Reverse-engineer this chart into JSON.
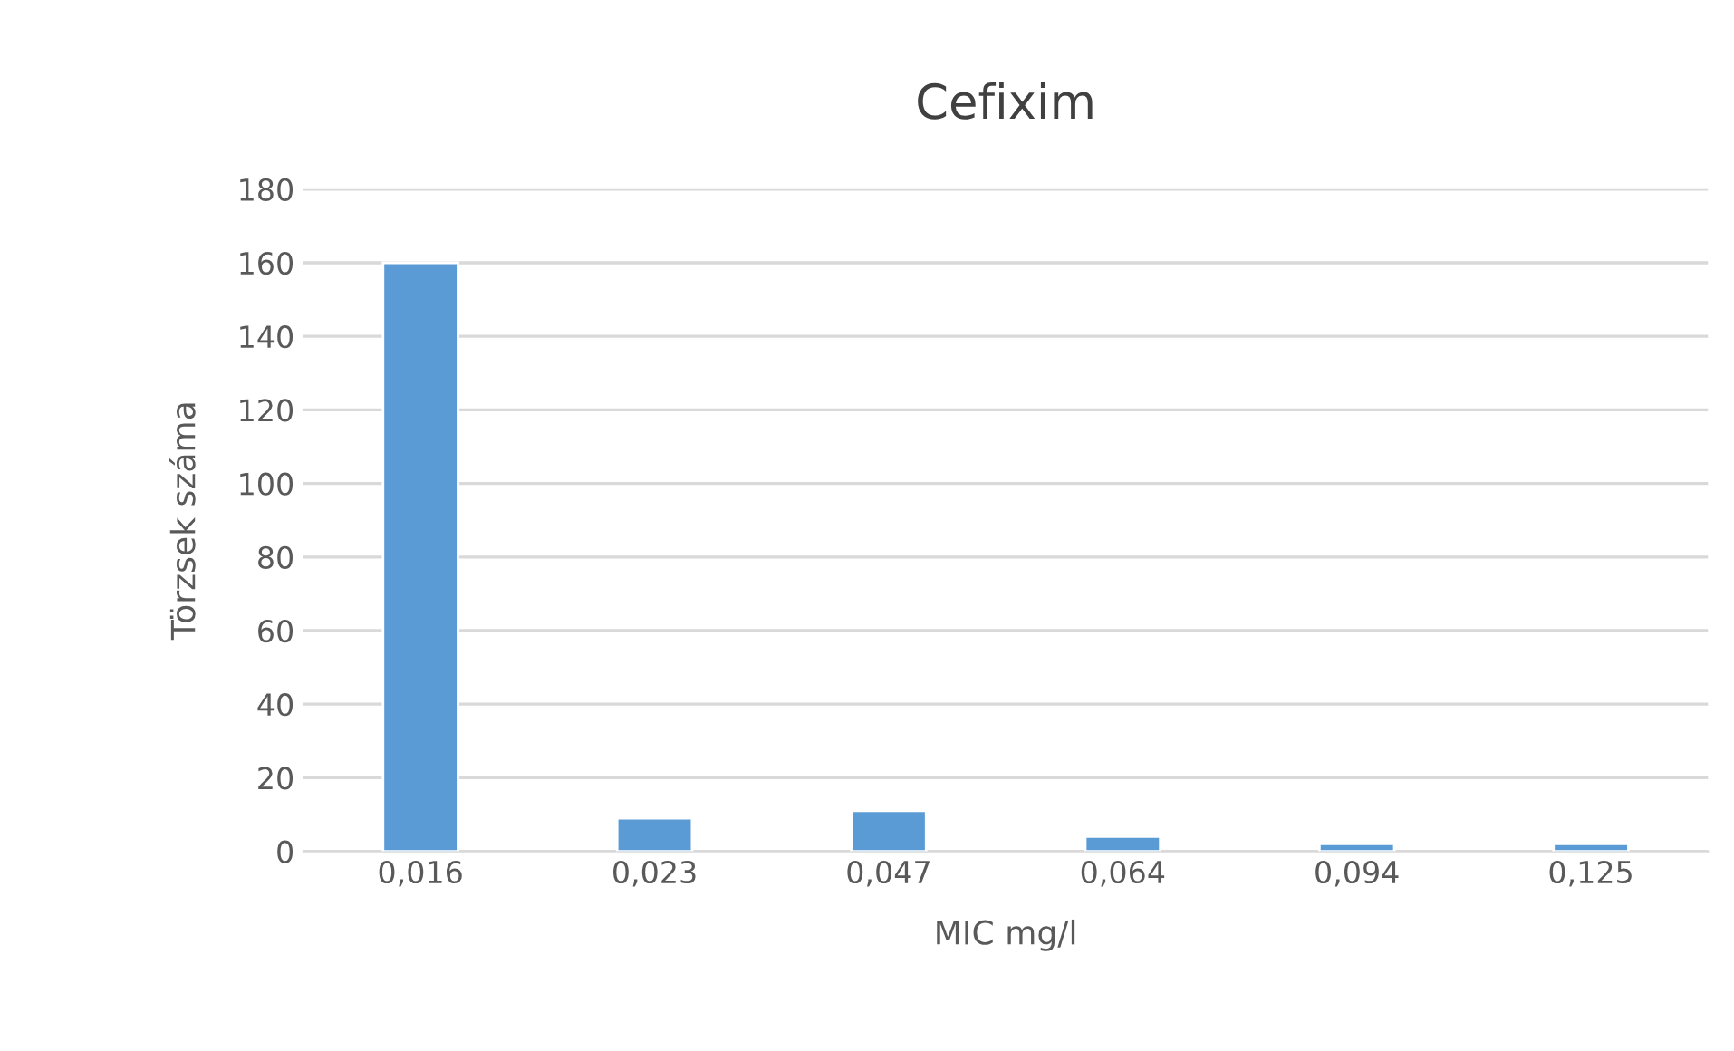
{
  "chart_data": {
    "type": "bar",
    "title": "Cefixim",
    "xlabel": "MIC mg/l",
    "ylabel": "Törzsek száma",
    "categories": [
      "0,016",
      "0,023",
      "0,047",
      "0,064",
      "0,094",
      "0,125"
    ],
    "values": [
      160,
      9,
      11,
      4,
      2,
      2
    ],
    "color": "#5b9bd5",
    "ylim": [
      0,
      180
    ],
    "yticks": [
      0,
      20,
      40,
      60,
      80,
      100,
      120,
      140,
      160,
      180
    ],
    "grid": "y"
  }
}
